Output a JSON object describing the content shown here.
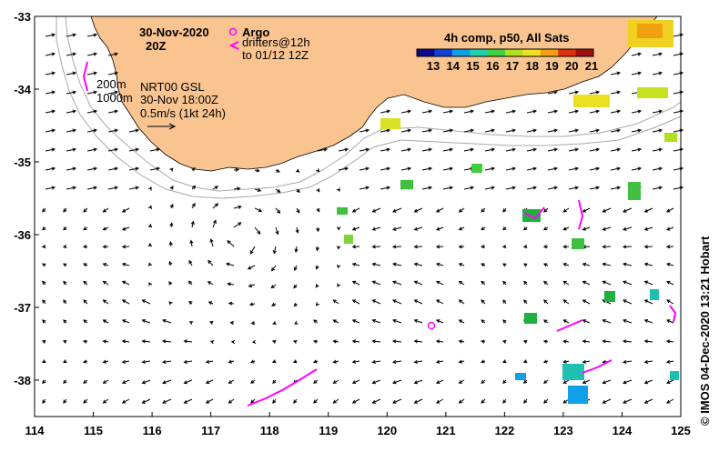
{
  "title": {
    "date": "30-Nov-2020",
    "hour": "20Z"
  },
  "legend": {
    "argo_label": "Argo",
    "drifters_label": "drifters@12h",
    "drifters_range": "to 01/12 12Z",
    "argo_color": "#ff00ff",
    "drifter_color": "#ff00ff"
  },
  "info": {
    "contour_200": "200m",
    "contour_1000": "1000m",
    "product": "NRT00 GSL",
    "time": "30-Nov 18:00Z",
    "scale": "0.5m/s (1kt 24h)"
  },
  "colorbar": {
    "title": "4h comp, p50, All Sats",
    "ticks": [
      "13",
      "14",
      "15",
      "16",
      "17",
      "18",
      "19",
      "20",
      "21"
    ],
    "colors": [
      "#0a0a8a",
      "#1040d8",
      "#10a0e8",
      "#20d0b0",
      "#40d040",
      "#b0e020",
      "#f0e020",
      "#f0a010",
      "#e03010",
      "#a01010"
    ]
  },
  "axes": {
    "x_ticks": [
      "114",
      "115",
      "116",
      "117",
      "118",
      "119",
      "120",
      "121",
      "122",
      "123",
      "124",
      "125"
    ],
    "y_ticks": [
      "-33",
      "-34",
      "-35",
      "-36",
      "-37",
      "-38"
    ]
  },
  "credit": "© IMOS 04-Dec-2020 13:21 Hobart",
  "colors": {
    "land": "#f9c490",
    "contour": "#a8a8a8",
    "arrow": "#000000"
  }
}
